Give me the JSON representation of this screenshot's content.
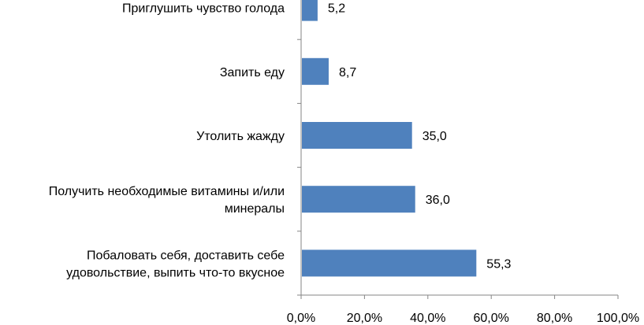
{
  "chart_data": {
    "type": "bar",
    "orientation": "horizontal",
    "categories": [
      [
        "Приглушить чувство голода"
      ],
      [
        "Запить еду"
      ],
      [
        "Утолить жажду"
      ],
      [
        "Получить необходимые витамины и/или",
        "минералы"
      ],
      [
        "Побаловать себя, доставить себе",
        "удовольствие, выпить что-то вкусное"
      ]
    ],
    "values": [
      5.2,
      8.7,
      35.0,
      36.0,
      55.3
    ],
    "value_labels": [
      "5,2",
      "8,7",
      "35,0",
      "36,0",
      "55,3"
    ],
    "xlim": [
      0,
      100
    ],
    "x_ticks": [
      "0,0%",
      "20,0%",
      "40,0%",
      "60,0%",
      "80,0%",
      "100,0%"
    ],
    "bar_color": "#4F81BD",
    "grid": false,
    "legend": "none"
  }
}
